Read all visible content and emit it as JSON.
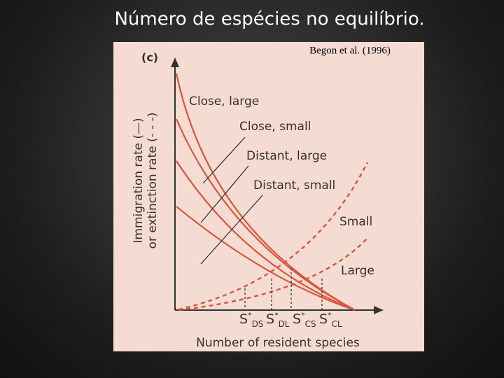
{
  "title": "Número de espécies no equilíbrio.",
  "figure": {
    "citation": "Begon et al. (1996)",
    "panel": "(c)",
    "y_axis": [
      "Immigration rate (—)",
      "or extinction rate (- - -)"
    ],
    "x_axis": "Number of resident species",
    "immigration_curves": [
      "Close, large",
      "Close, small",
      "Distant, large",
      "Distant, small"
    ],
    "extinction_curves": [
      "Small",
      "Large"
    ],
    "equilibria": [
      {
        "symbol": "S",
        "mark": "*",
        "sub": "DS"
      },
      {
        "symbol": "S",
        "mark": "*",
        "sub": "DL"
      },
      {
        "symbol": "S",
        "mark": "*",
        "sub": "CS"
      },
      {
        "symbol": "S",
        "mark": "*",
        "sub": "CL"
      }
    ]
  }
}
